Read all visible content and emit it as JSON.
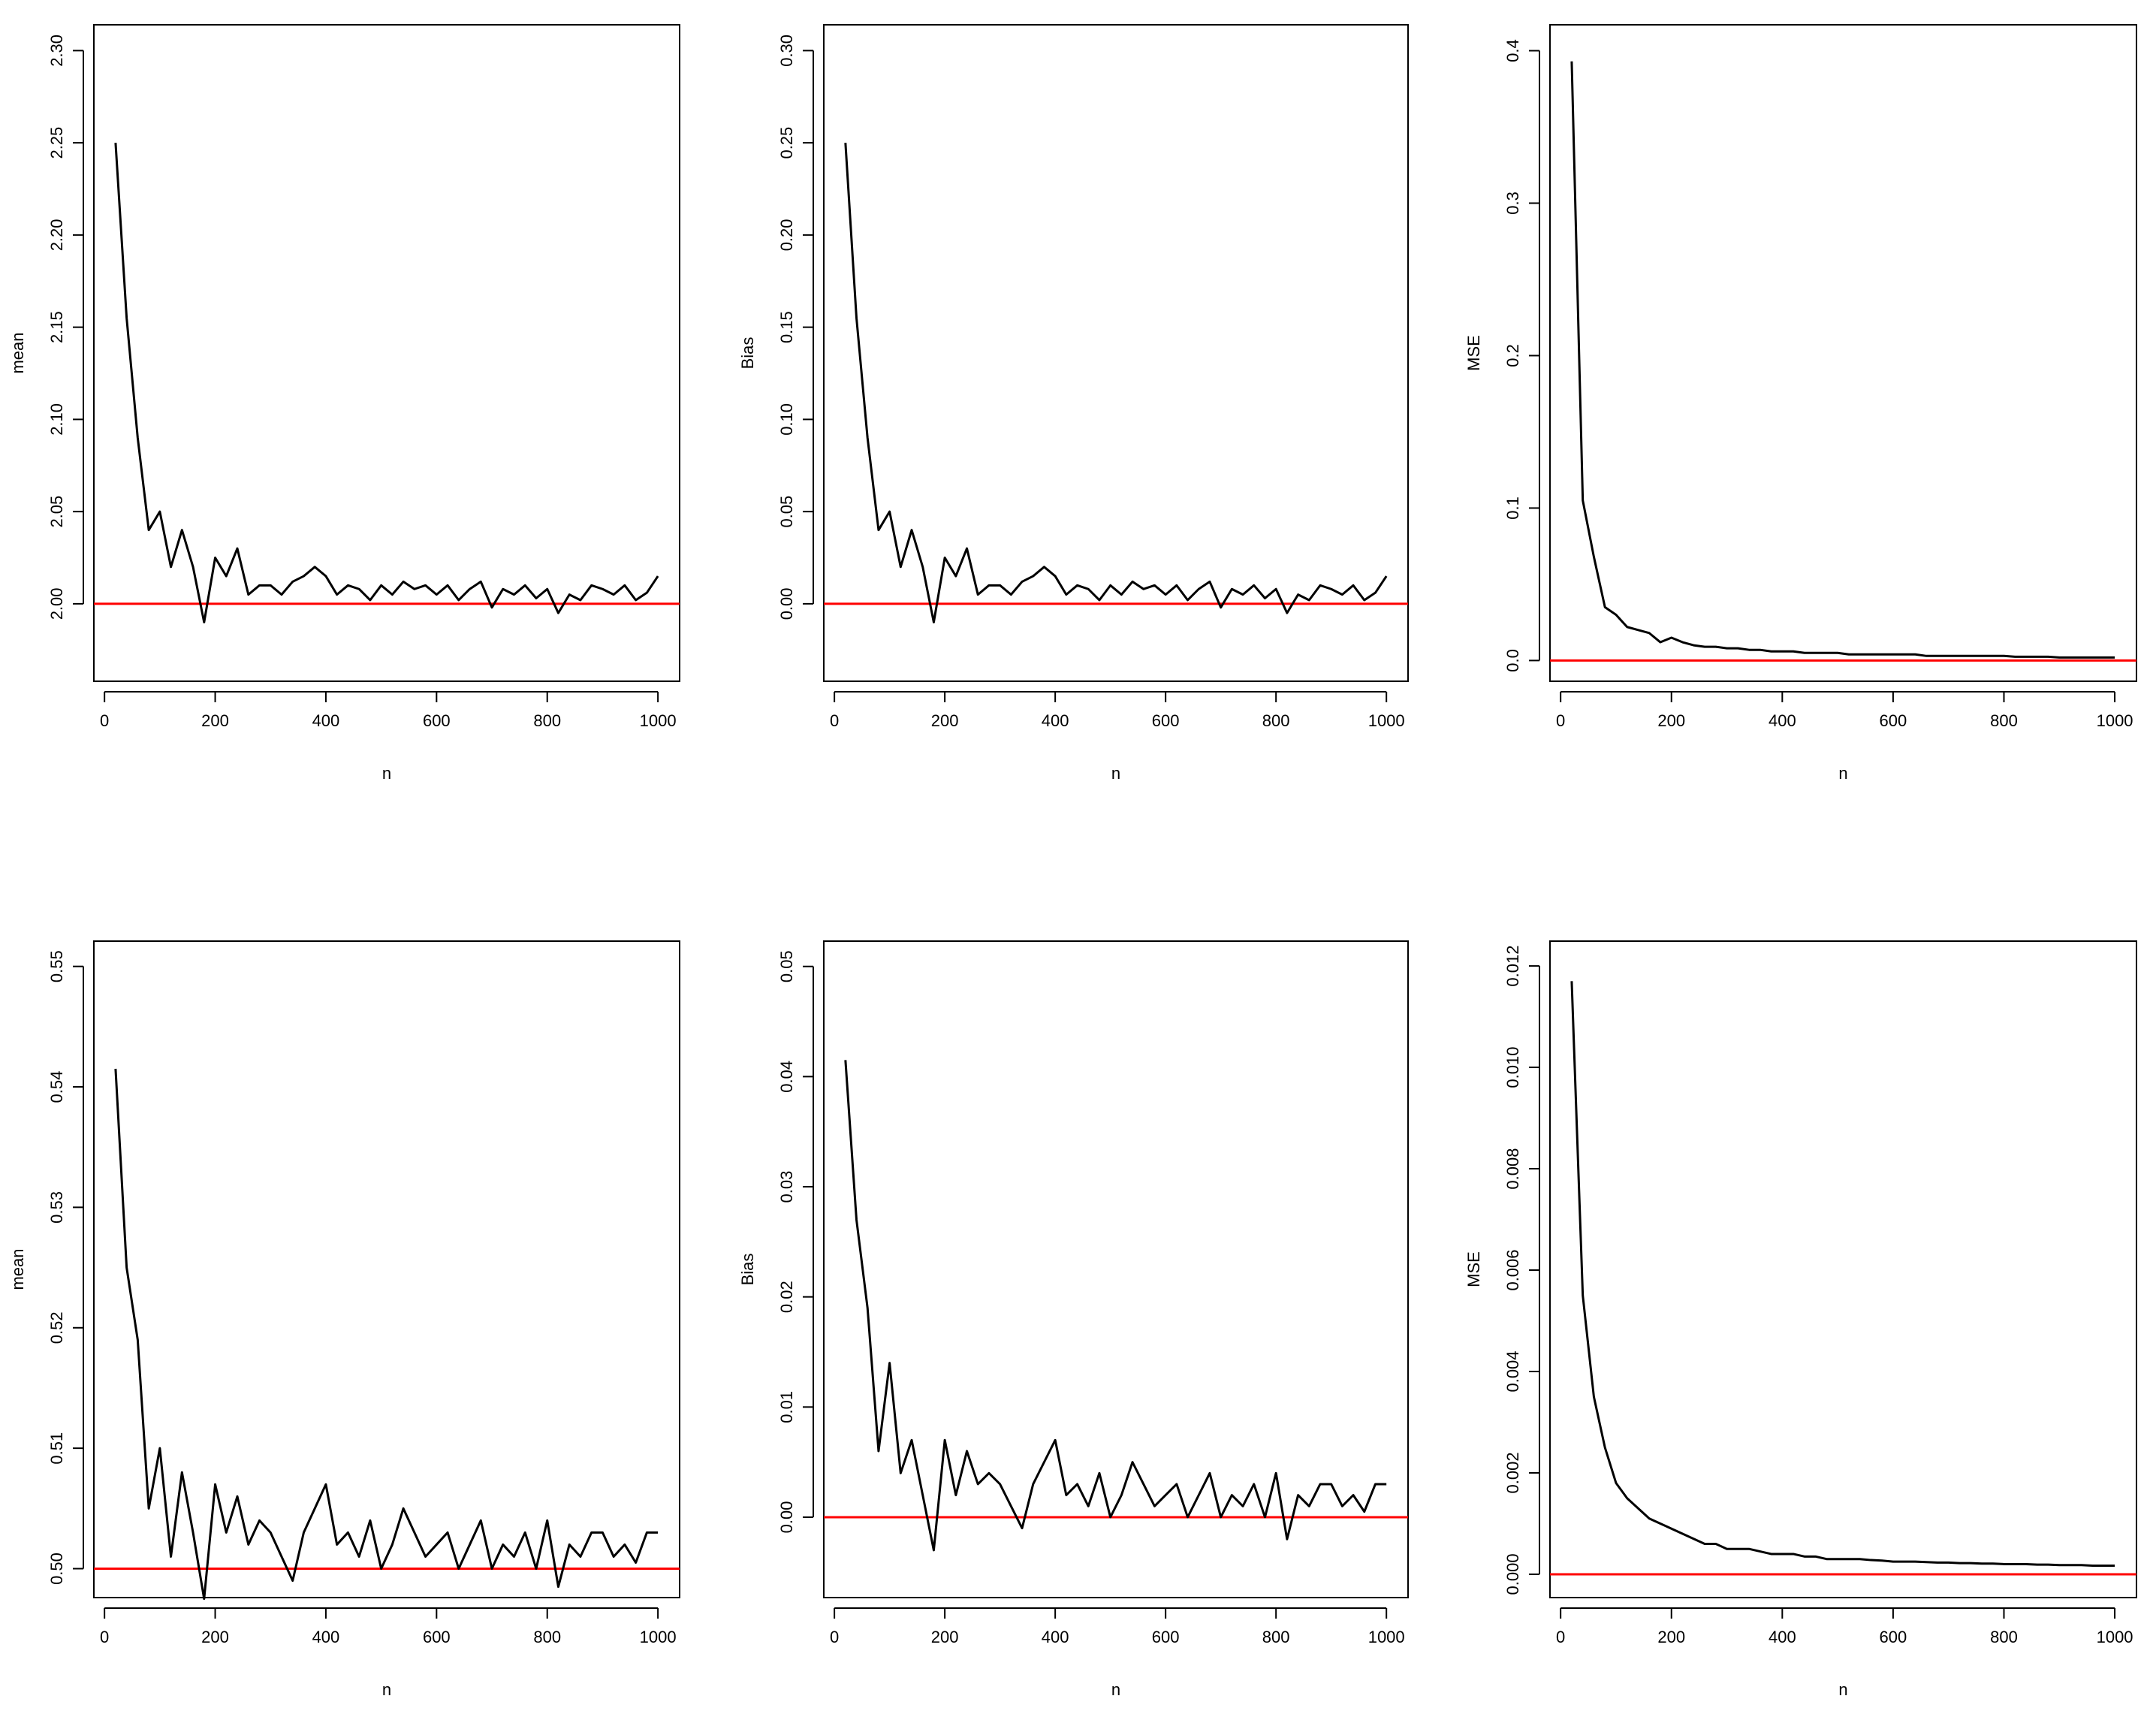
{
  "chart_data": [
    {
      "type": "line",
      "x_label": "n",
      "y_label": "mean",
      "x": [
        20,
        40,
        60,
        80,
        100,
        120,
        140,
        160,
        180,
        200,
        220,
        240,
        260,
        280,
        300,
        320,
        340,
        360,
        380,
        400,
        420,
        440,
        460,
        480,
        500,
        520,
        540,
        560,
        580,
        600,
        620,
        640,
        660,
        680,
        700,
        720,
        740,
        760,
        780,
        800,
        820,
        840,
        860,
        880,
        900,
        920,
        940,
        960,
        980,
        1000
      ],
      "series": [
        {
          "color": "#000000",
          "values": [
            2.25,
            2.155,
            2.09,
            2.04,
            2.05,
            2.02,
            2.04,
            2.02,
            1.99,
            2.025,
            2.015,
            2.03,
            2.005,
            2.01,
            2.01,
            2.005,
            2.012,
            2.015,
            2.02,
            2.015,
            2.005,
            2.01,
            2.008,
            2.002,
            2.01,
            2.005,
            2.012,
            2.008,
            2.01,
            2.005,
            2.01,
            2.002,
            2.008,
            2.012,
            1.998,
            2.008,
            2.005,
            2.01,
            2.003,
            2.008,
            1.995,
            2.005,
            2.002,
            2.01,
            2.008,
            2.005,
            2.01,
            2.002,
            2.006,
            2.015
          ]
        }
      ],
      "reference_line": {
        "value": 2,
        "color": "#ff0000"
      },
      "xlim": [
        -19.2,
        1039.2
      ],
      "xticks": [
        0,
        200,
        400,
        600,
        800,
        1000
      ],
      "ylim": [
        1.958,
        2.314
      ],
      "yticks": [
        {
          "value": 2,
          "label": "2.00"
        },
        {
          "value": 2.05,
          "label": "2.05"
        },
        {
          "value": 2.1,
          "label": "2.10"
        },
        {
          "value": 2.15,
          "label": "2.15"
        },
        {
          "value": 2.2,
          "label": "2.20"
        },
        {
          "value": 2.25,
          "label": "2.25"
        },
        {
          "value": 2.3,
          "label": "2.30"
        }
      ]
    },
    {
      "type": "line",
      "x_label": "n",
      "y_label": "Bias",
      "x": [
        20,
        40,
        60,
        80,
        100,
        120,
        140,
        160,
        180,
        200,
        220,
        240,
        260,
        280,
        300,
        320,
        340,
        360,
        380,
        400,
        420,
        440,
        460,
        480,
        500,
        520,
        540,
        560,
        580,
        600,
        620,
        640,
        660,
        680,
        700,
        720,
        740,
        760,
        780,
        800,
        820,
        840,
        860,
        880,
        900,
        920,
        940,
        960,
        980,
        1000
      ],
      "series": [
        {
          "color": "#000000",
          "values": [
            0.25,
            0.155,
            0.09,
            0.04,
            0.05,
            0.02,
            0.04,
            0.02,
            -0.01,
            0.025,
            0.015,
            0.03,
            0.005,
            0.01,
            0.01,
            0.005,
            0.012,
            0.015,
            0.02,
            0.015,
            0.005,
            0.01,
            0.008,
            0.002,
            0.01,
            0.005,
            0.012,
            0.008,
            0.01,
            0.005,
            0.01,
            0.002,
            0.008,
            0.012,
            -0.002,
            0.008,
            0.005,
            0.01,
            0.003,
            0.008,
            -0.005,
            0.005,
            0.002,
            0.01,
            0.008,
            0.005,
            0.01,
            0.002,
            0.006,
            0.015
          ]
        }
      ],
      "reference_line": {
        "value": 0,
        "color": "#ff0000"
      },
      "xlim": [
        -19.2,
        1039.2
      ],
      "xticks": [
        0,
        200,
        400,
        600,
        800,
        1000
      ],
      "ylim": [
        -0.042,
        0.314
      ],
      "yticks": [
        {
          "value": 0,
          "label": "0.00"
        },
        {
          "value": 0.05,
          "label": "0.05"
        },
        {
          "value": 0.1,
          "label": "0.10"
        },
        {
          "value": 0.15,
          "label": "0.15"
        },
        {
          "value": 0.2,
          "label": "0.20"
        },
        {
          "value": 0.25,
          "label": "0.25"
        },
        {
          "value": 0.3,
          "label": "0.30"
        }
      ]
    },
    {
      "type": "line",
      "x_label": "n",
      "y_label": "MSE",
      "x": [
        20,
        40,
        60,
        80,
        100,
        120,
        140,
        160,
        180,
        200,
        220,
        240,
        260,
        280,
        300,
        320,
        340,
        360,
        380,
        400,
        420,
        440,
        460,
        480,
        500,
        520,
        540,
        560,
        580,
        600,
        620,
        640,
        660,
        680,
        700,
        720,
        740,
        760,
        780,
        800,
        820,
        840,
        860,
        880,
        900,
        920,
        940,
        960,
        980,
        1000
      ],
      "series": [
        {
          "color": "#000000",
          "values": [
            0.393,
            0.105,
            0.068,
            0.035,
            0.03,
            0.022,
            0.02,
            0.018,
            0.012,
            0.015,
            0.012,
            0.01,
            0.009,
            0.009,
            0.008,
            0.008,
            0.007,
            0.007,
            0.006,
            0.006,
            0.006,
            0.005,
            0.005,
            0.005,
            0.005,
            0.004,
            0.004,
            0.004,
            0.004,
            0.004,
            0.004,
            0.004,
            0.003,
            0.003,
            0.003,
            0.003,
            0.003,
            0.003,
            0.003,
            0.003,
            0.0025,
            0.0025,
            0.0025,
            0.0025,
            0.002,
            0.002,
            0.002,
            0.002,
            0.002,
            0.002
          ]
        }
      ],
      "reference_line": {
        "value": 0,
        "color": "#ff0000"
      },
      "xlim": [
        -19.2,
        1039.2
      ],
      "xticks": [
        0,
        200,
        400,
        600,
        800,
        1000
      ],
      "ylim": [
        -0.0136,
        0.417
      ],
      "yticks": [
        {
          "value": 0,
          "label": "0.0"
        },
        0.1,
        0.2,
        0.3,
        0.4
      ]
    },
    {
      "type": "line",
      "x_label": "n",
      "y_label": "mean",
      "x": [
        20,
        40,
        60,
        80,
        100,
        120,
        140,
        160,
        180,
        200,
        220,
        240,
        260,
        280,
        300,
        320,
        340,
        360,
        380,
        400,
        420,
        440,
        460,
        480,
        500,
        520,
        540,
        560,
        580,
        600,
        620,
        640,
        660,
        680,
        700,
        720,
        740,
        760,
        780,
        800,
        820,
        840,
        860,
        880,
        900,
        920,
        940,
        960,
        980,
        1000
      ],
      "series": [
        {
          "color": "#000000",
          "values": [
            0.5415,
            0.525,
            0.519,
            0.505,
            0.51,
            0.501,
            0.508,
            0.503,
            0.4975,
            0.507,
            0.503,
            0.506,
            0.502,
            0.504,
            0.503,
            0.501,
            0.499,
            0.503,
            0.505,
            0.507,
            0.502,
            0.503,
            0.501,
            0.504,
            0.5,
            0.502,
            0.505,
            0.503,
            0.501,
            0.502,
            0.503,
            0.5,
            0.502,
            0.504,
            0.5,
            0.502,
            0.501,
            0.503,
            0.5,
            0.504,
            0.4985,
            0.502,
            0.501,
            0.503,
            0.503,
            0.501,
            0.502,
            0.5005,
            0.503,
            0.503
          ]
        }
      ],
      "reference_line": {
        "value": 0.5,
        "color": "#ff0000"
      },
      "xlim": [
        -19.2,
        1039.2
      ],
      "xticks": [
        0,
        200,
        400,
        600,
        800,
        1000
      ],
      "ylim": [
        0.4976,
        0.5521
      ],
      "yticks": [
        {
          "value": 0.5,
          "label": "0.50"
        },
        0.51,
        0.52,
        0.53,
        0.54,
        0.55
      ]
    },
    {
      "type": "line",
      "x_label": "n",
      "y_label": "Bias",
      "x": [
        20,
        40,
        60,
        80,
        100,
        120,
        140,
        160,
        180,
        200,
        220,
        240,
        260,
        280,
        300,
        320,
        340,
        360,
        380,
        400,
        420,
        440,
        460,
        480,
        500,
        520,
        540,
        560,
        580,
        600,
        620,
        640,
        660,
        680,
        700,
        720,
        740,
        760,
        780,
        800,
        820,
        840,
        860,
        880,
        900,
        920,
        940,
        960,
        980,
        1000
      ],
      "series": [
        {
          "color": "#000000",
          "values": [
            0.0415,
            0.027,
            0.019,
            0.006,
            0.014,
            0.004,
            0.007,
            0.002,
            -0.003,
            0.007,
            0.002,
            0.006,
            0.003,
            0.004,
            0.003,
            0.001,
            -0.001,
            0.003,
            0.005,
            0.007,
            0.002,
            0.003,
            0.001,
            0.004,
            0.0,
            0.002,
            0.005,
            0.003,
            0.001,
            0.002,
            0.003,
            0.0,
            0.002,
            0.004,
            0.0,
            0.002,
            0.001,
            0.003,
            0.0,
            0.004,
            -0.002,
            0.002,
            0.001,
            0.003,
            0.003,
            0.001,
            0.002,
            0.0005,
            0.003,
            0.003
          ]
        }
      ],
      "reference_line": {
        "value": 0,
        "color": "#ff0000"
      },
      "xlim": [
        -19.2,
        1039.2
      ],
      "xticks": [
        0,
        200,
        400,
        600,
        800,
        1000
      ],
      "ylim": [
        -0.0073,
        0.0523
      ],
      "yticks": [
        {
          "value": 0,
          "label": "0.00"
        },
        0.01,
        0.02,
        0.03,
        0.04,
        0.05
      ]
    },
    {
      "type": "line",
      "x_label": "n",
      "y_label": "MSE",
      "x": [
        20,
        40,
        60,
        80,
        100,
        120,
        140,
        160,
        180,
        200,
        220,
        240,
        260,
        280,
        300,
        320,
        340,
        360,
        380,
        400,
        420,
        440,
        460,
        480,
        500,
        520,
        540,
        560,
        580,
        600,
        620,
        640,
        660,
        680,
        700,
        720,
        740,
        760,
        780,
        800,
        820,
        840,
        860,
        880,
        900,
        920,
        940,
        960,
        980,
        1000
      ],
      "series": [
        {
          "color": "#000000",
          "values": [
            0.0117,
            0.0055,
            0.0035,
            0.0025,
            0.0018,
            0.0015,
            0.0013,
            0.0011,
            0.001,
            0.0009,
            0.0008,
            0.0007,
            0.0006,
            0.0006,
            0.0005,
            0.0005,
            0.0005,
            0.00045,
            0.0004,
            0.0004,
            0.0004,
            0.00035,
            0.00035,
            0.0003,
            0.0003,
            0.0003,
            0.0003,
            0.00028,
            0.00027,
            0.00025,
            0.00025,
            0.00025,
            0.00024,
            0.00023,
            0.00023,
            0.00022,
            0.00022,
            0.00021,
            0.00021,
            0.0002,
            0.0002,
            0.0002,
            0.00019,
            0.00019,
            0.00018,
            0.00018,
            0.00018,
            0.00017,
            0.00017,
            0.00017
          ]
        }
      ],
      "reference_line": {
        "value": 0,
        "color": "#ff0000"
      },
      "xlim": [
        -19.2,
        1039.2
      ],
      "xticks": [
        0,
        200,
        400,
        600,
        800,
        1000
      ],
      "ylim": [
        -0.00046,
        0.01249
      ],
      "yticks": [
        {
          "value": 0,
          "label": "0.000"
        },
        {
          "value": 0.002,
          "label": "0.002"
        },
        {
          "value": 0.004,
          "label": "0.004"
        },
        {
          "value": 0.006,
          "label": "0.006"
        },
        {
          "value": 0.008,
          "label": "0.008"
        },
        {
          "value": 0.01,
          "label": "0.010"
        },
        {
          "value": 0.012,
          "label": "0.012"
        }
      ]
    }
  ]
}
